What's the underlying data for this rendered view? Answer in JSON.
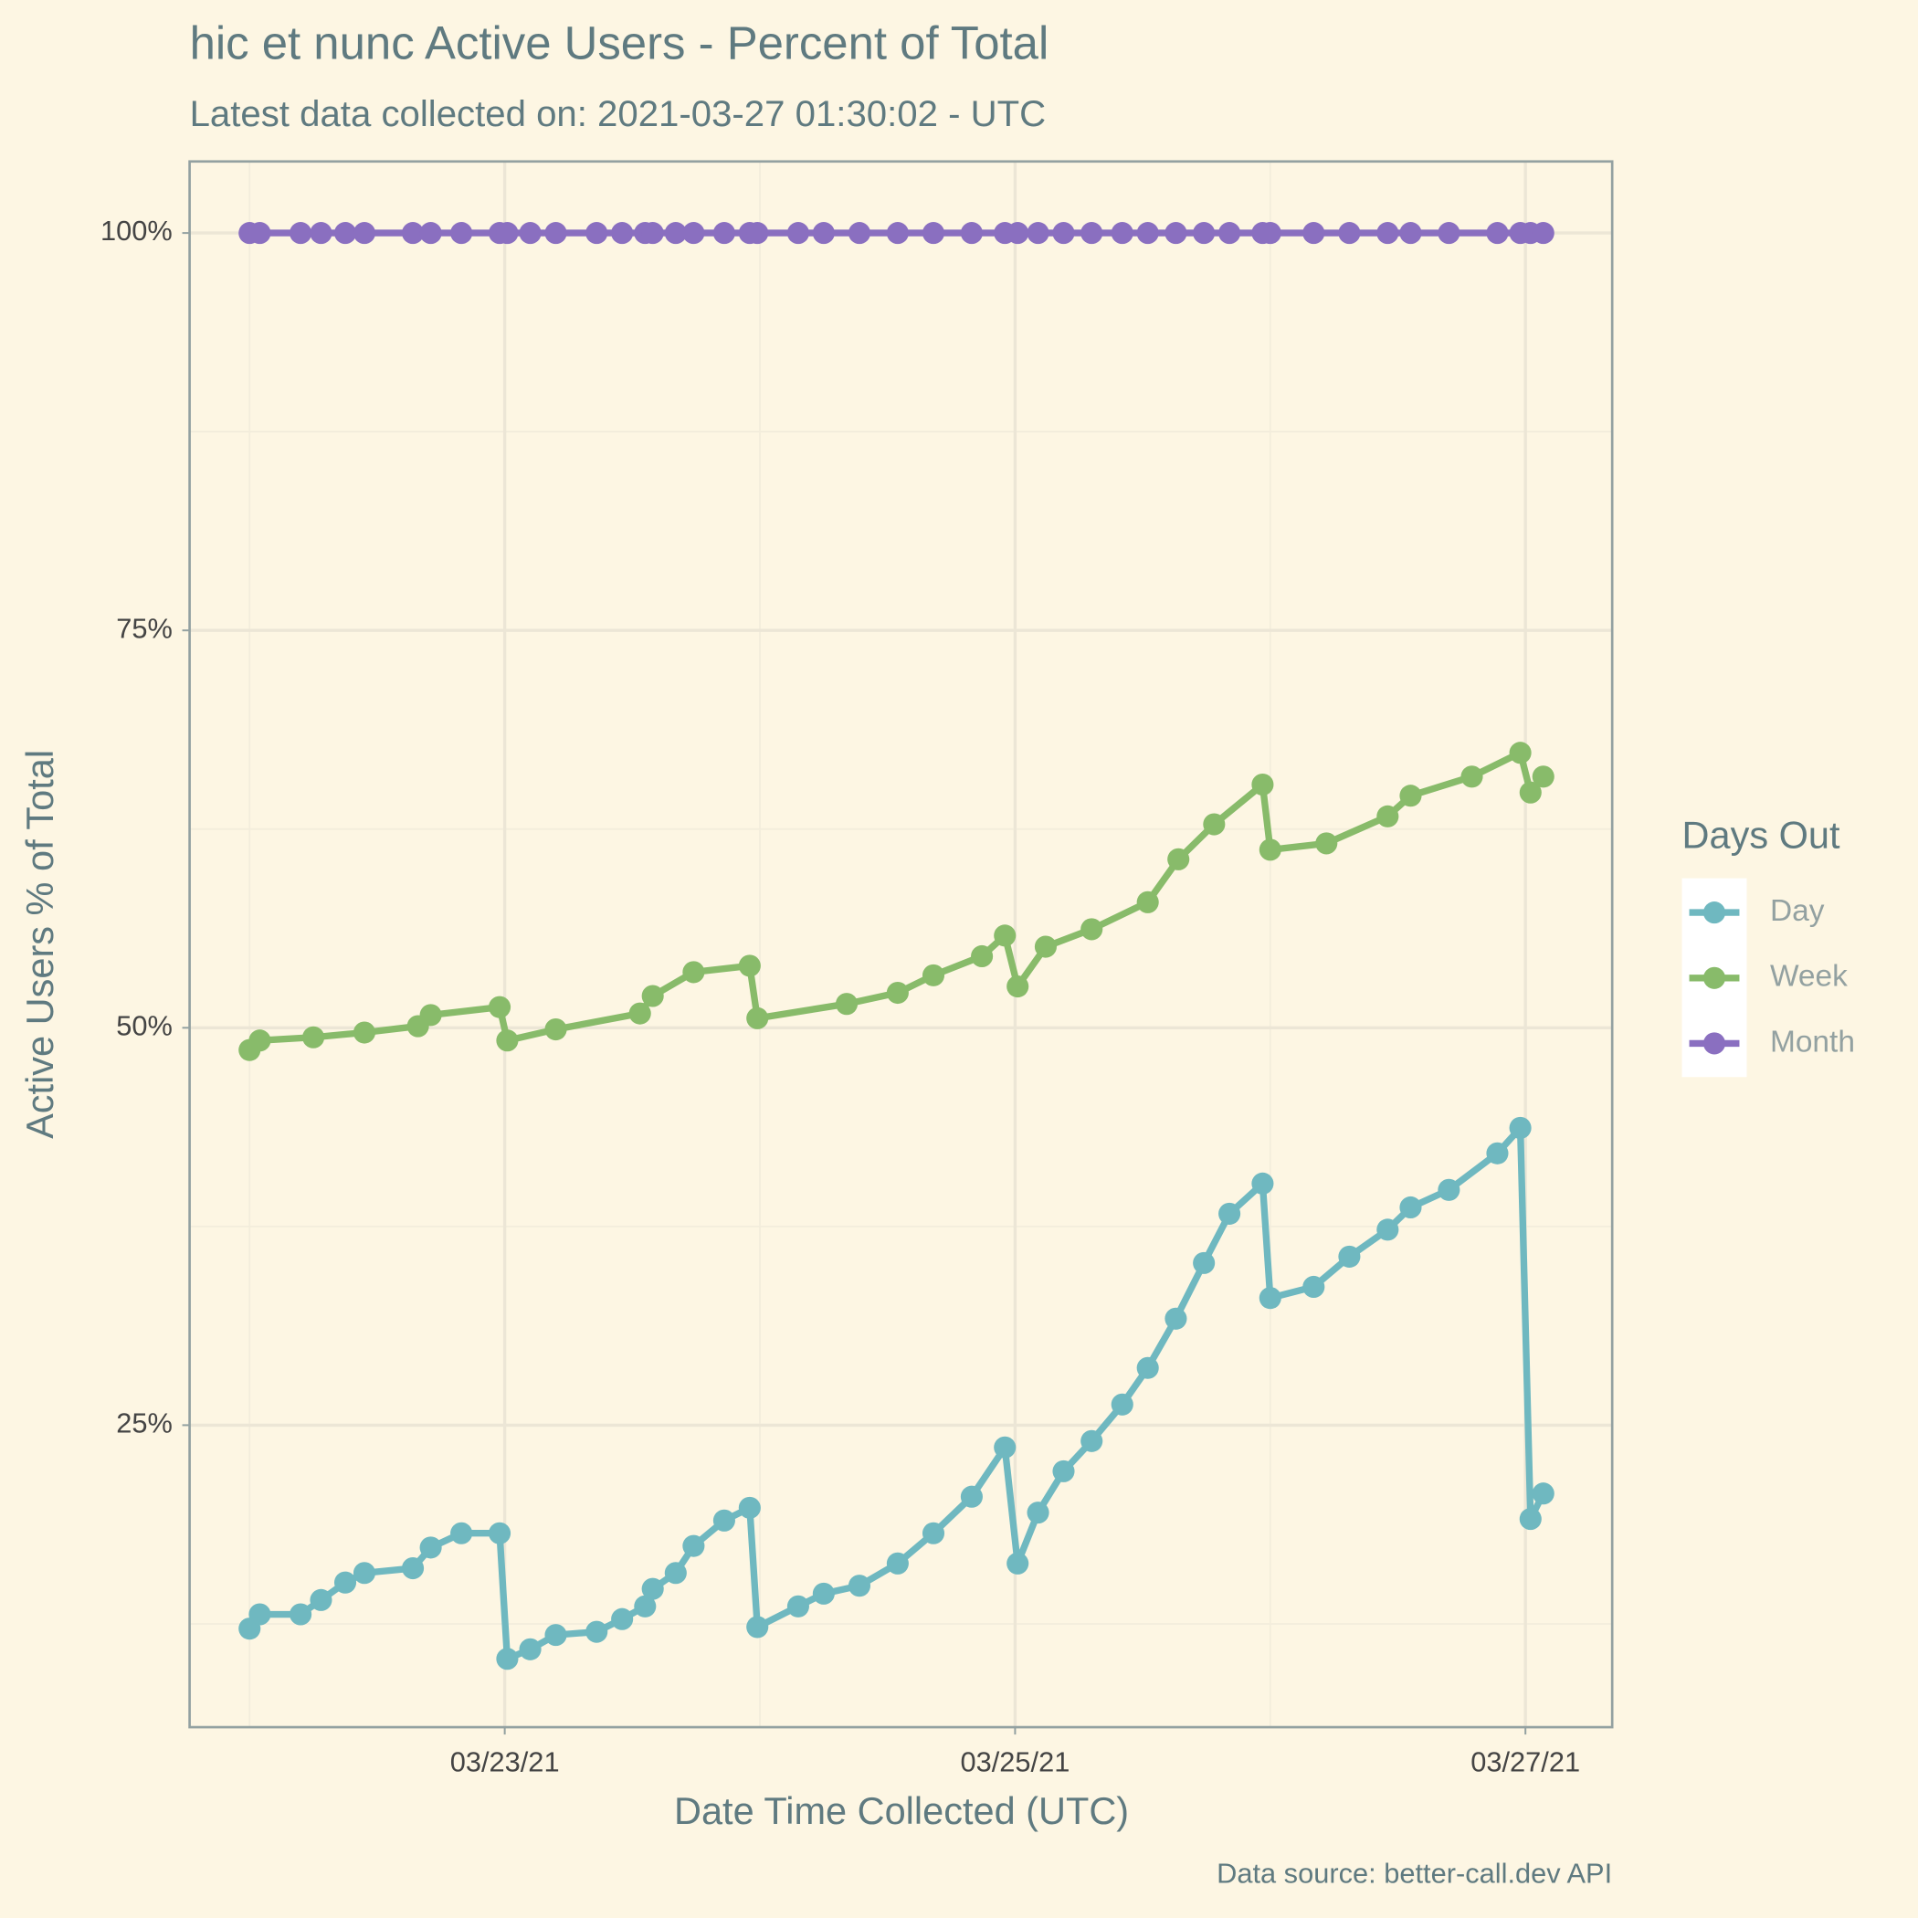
{
  "chart_data": {
    "type": "line",
    "title": "hic et nunc Active Users - Percent of Total",
    "subtitle": "Latest data collected on: 2021-03-27 01:30:02  - UTC",
    "x_label": "Date Time Collected (UTC)",
    "y_label": "Active Users % of Total",
    "caption": "Data source: better-call.dev API",
    "legend_title": "Days Out",
    "legend": "right",
    "grid": true,
    "xlim": [
      21.765,
      27.34
    ],
    "xticks": [
      {
        "value": 23,
        "label": "03/23/21"
      },
      {
        "value": 25,
        "label": "03/25/21"
      },
      {
        "value": 27,
        "label": "03/27/21"
      }
    ],
    "ylim": [
      6,
      104.5
    ],
    "yticks": [
      {
        "value": 25,
        "label": "25%"
      },
      {
        "value": 50,
        "label": "50%"
      },
      {
        "value": 75,
        "label": "75%"
      },
      {
        "value": 100,
        "label": "100%"
      }
    ],
    "series": [
      {
        "name": "Day",
        "color": "#6fb8c0",
        "x": [
          22.0,
          22.04,
          22.2,
          22.28,
          22.375,
          22.45,
          22.64,
          22.71,
          22.83,
          22.98,
          23.01,
          23.1,
          23.2,
          23.36,
          23.46,
          23.55,
          23.58,
          23.67,
          23.74,
          23.86,
          23.96,
          23.99,
          24.15,
          24.25,
          24.39,
          24.54,
          24.68,
          24.83,
          24.96,
          25.01,
          25.09,
          25.19,
          25.3,
          25.42,
          25.52,
          25.63,
          25.74,
          25.84,
          25.97,
          26.0,
          26.17,
          26.31,
          26.46,
          26.55,
          26.7,
          26.89,
          26.98,
          27.02,
          27.07
        ],
        "values": [
          12.2,
          13.1,
          13.1,
          14.0,
          15.1,
          15.7,
          16.0,
          17.3,
          18.2,
          18.2,
          10.3,
          10.9,
          11.8,
          12.0,
          12.8,
          13.6,
          14.7,
          15.7,
          17.4,
          19.0,
          19.8,
          12.3,
          13.6,
          14.4,
          14.9,
          16.3,
          18.2,
          20.5,
          23.6,
          16.3,
          19.5,
          22.1,
          24.0,
          26.3,
          28.6,
          31.7,
          35.2,
          38.3,
          40.2,
          33.0,
          33.7,
          35.6,
          37.3,
          38.7,
          39.8,
          42.1,
          43.7,
          19.1,
          20.7
        ]
      },
      {
        "name": "Week",
        "color": "#88bb6a",
        "x": [
          22.0,
          22.04,
          22.25,
          22.45,
          22.66,
          22.71,
          22.98,
          23.01,
          23.2,
          23.53,
          23.58,
          23.74,
          23.96,
          23.99,
          24.34,
          24.54,
          24.68,
          24.87,
          24.96,
          25.01,
          25.12,
          25.3,
          25.52,
          25.64,
          25.78,
          25.97,
          26.0,
          26.22,
          26.46,
          26.55,
          26.79,
          26.98,
          27.02,
          27.07
        ],
        "values": [
          48.6,
          49.2,
          49.4,
          49.7,
          50.1,
          50.8,
          51.3,
          49.2,
          49.9,
          50.9,
          52.0,
          53.5,
          53.9,
          50.6,
          51.5,
          52.2,
          53.3,
          54.5,
          55.8,
          52.6,
          55.1,
          56.2,
          57.9,
          60.6,
          62.8,
          65.3,
          61.2,
          61.6,
          63.3,
          64.6,
          65.8,
          67.3,
          64.8,
          65.8
        ]
      },
      {
        "name": "Month",
        "color": "#8a6fc0",
        "x": [
          22.0,
          22.04,
          22.2,
          22.28,
          22.375,
          22.45,
          22.64,
          22.71,
          22.83,
          22.98,
          23.01,
          23.1,
          23.2,
          23.36,
          23.46,
          23.55,
          23.58,
          23.67,
          23.74,
          23.86,
          23.96,
          23.99,
          24.15,
          24.25,
          24.39,
          24.54,
          24.68,
          24.83,
          24.96,
          25.01,
          25.09,
          25.19,
          25.3,
          25.42,
          25.52,
          25.63,
          25.74,
          25.84,
          25.97,
          26.0,
          26.17,
          26.31,
          26.46,
          26.55,
          26.7,
          26.89,
          26.98,
          27.02,
          27.07
        ],
        "values": [
          100,
          100,
          100,
          100,
          100,
          100,
          100,
          100,
          100,
          100,
          100,
          100,
          100,
          100,
          100,
          100,
          100,
          100,
          100,
          100,
          100,
          100,
          100,
          100,
          100,
          100,
          100,
          100,
          100,
          100,
          100,
          100,
          100,
          100,
          100,
          100,
          100,
          100,
          100,
          100,
          100,
          100,
          100,
          100,
          100,
          100,
          100,
          100,
          100
        ]
      }
    ]
  }
}
